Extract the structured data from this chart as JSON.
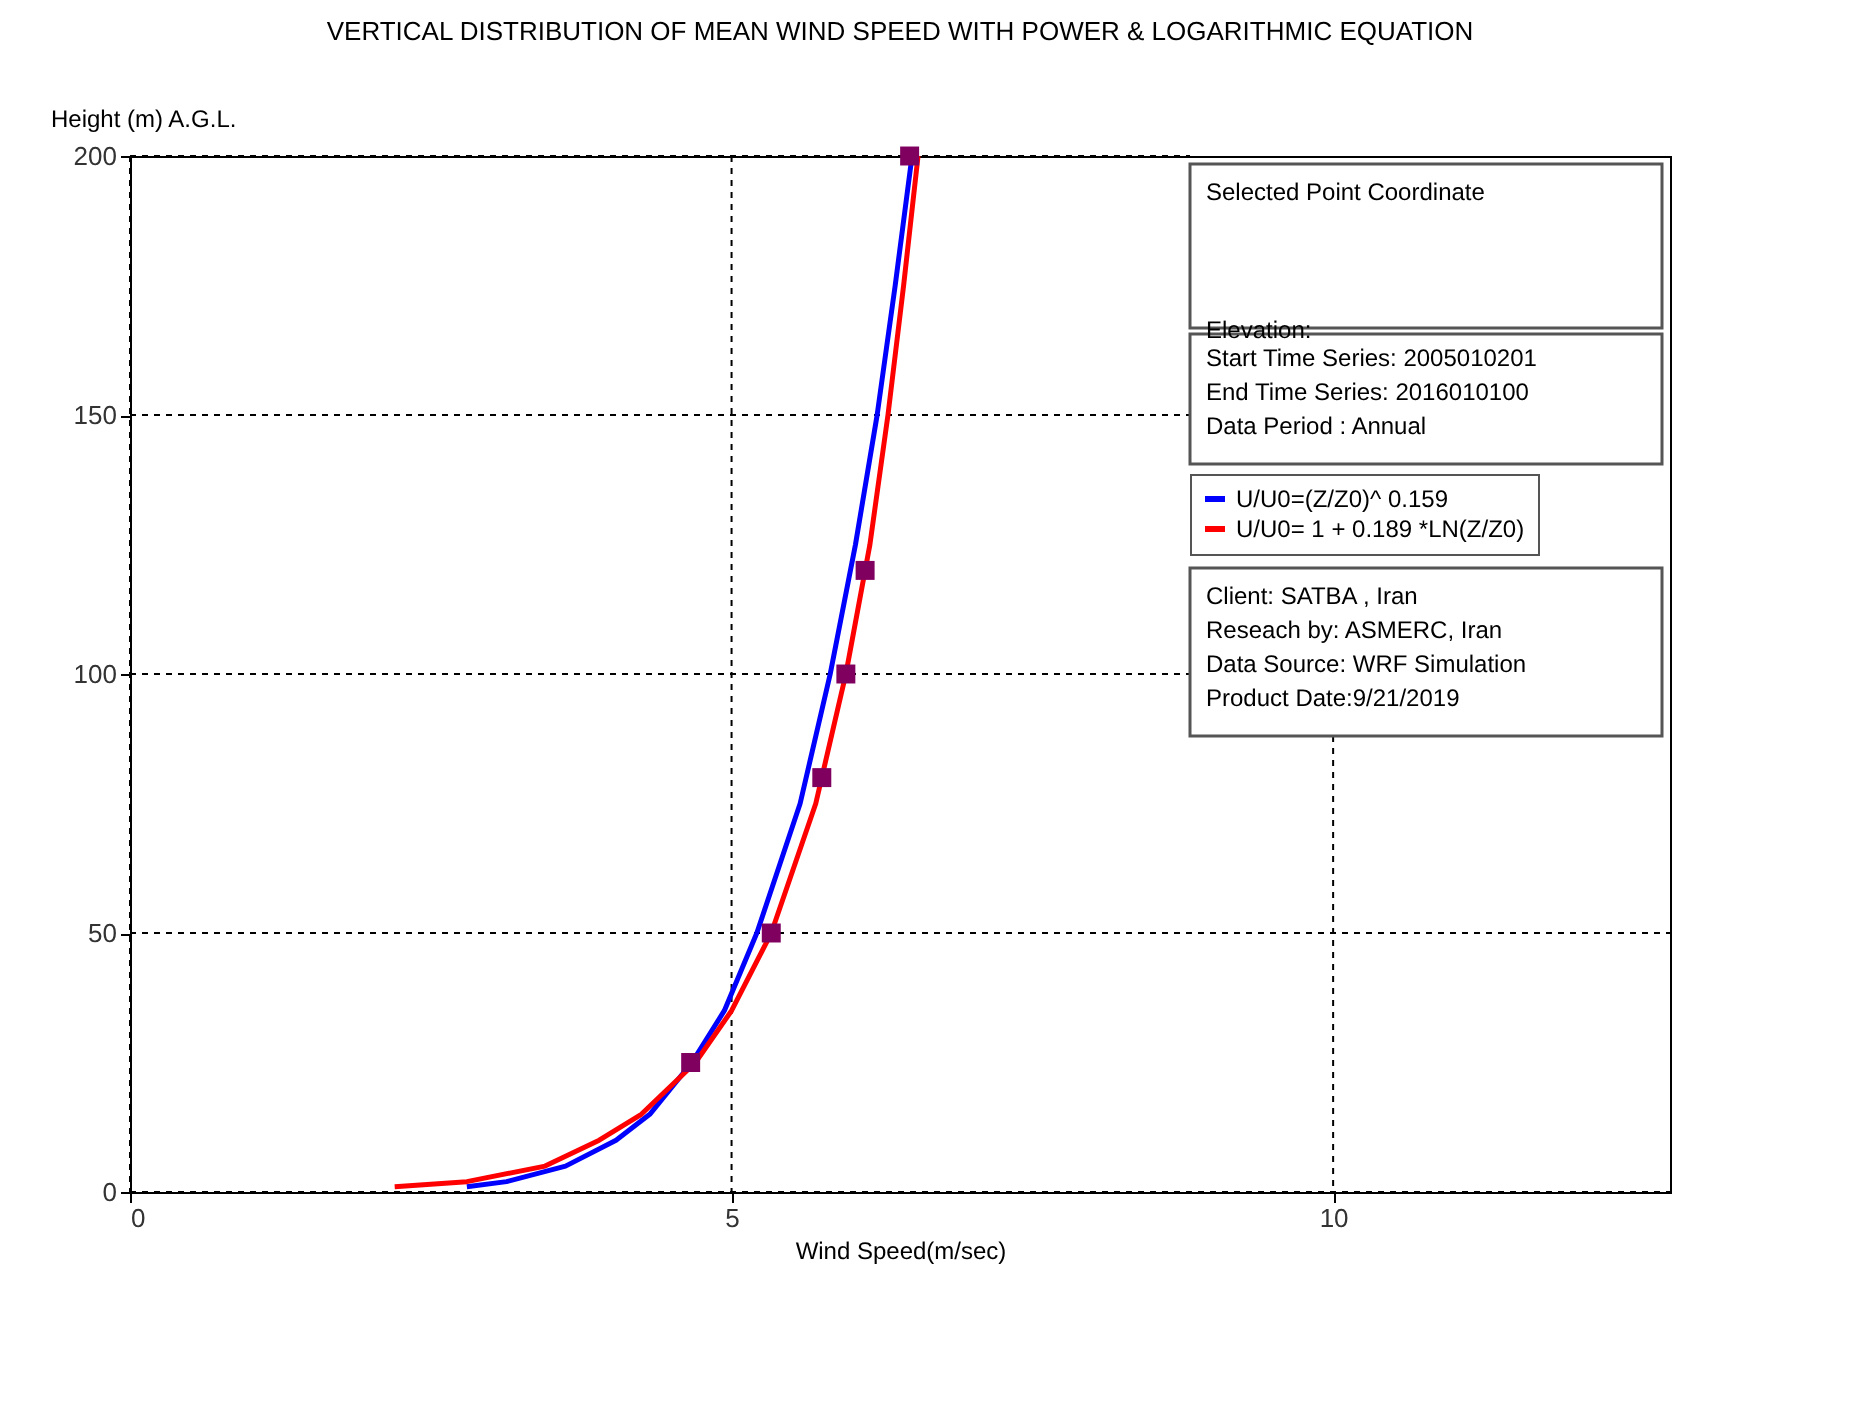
{
  "chart_data": {
    "type": "line",
    "title": "VERTICAL DISTRIBUTION OF MEAN WIND SPEED WITH POWER & LOGARITHMIC EQUATION",
    "xlabel": "Wind Speed(m/sec)",
    "ylabel": "Height (m)  A.G.L.",
    "series": [
      {
        "name": "U/U0=(Z/Z0)^ 0.159",
        "color": "#0000ff",
        "x": [
          2.8,
          3.13,
          3.62,
          4.04,
          4.32,
          4.67,
          4.94,
          5.21,
          5.57,
          5.82,
          6.03,
          6.21,
          6.36,
          6.5
        ],
        "values": [
          1,
          2,
          5,
          10,
          15,
          25,
          35,
          50,
          75,
          100,
          125,
          150,
          175,
          200
        ]
      },
      {
        "name": "U/U0= 1 + 0.189 *LN(Z/Z0)",
        "color": "#ff0000",
        "x": [
          2.2,
          2.8,
          3.45,
          3.9,
          4.25,
          4.7,
          5.0,
          5.33,
          5.7,
          5.95,
          6.15,
          6.3,
          6.43,
          6.55
        ],
        "values": [
          1,
          2,
          5,
          10,
          15,
          25,
          35,
          50,
          75,
          100,
          125,
          150,
          175,
          200
        ]
      },
      {
        "type": "scatter",
        "marker": "square",
        "color": "#800060",
        "x": [
          4.66,
          5.33,
          5.75,
          5.95,
          6.11,
          6.48
        ],
        "values": [
          25,
          50,
          80,
          100,
          120,
          200
        ]
      }
    ],
    "xlim": [
      0,
      12.8
    ],
    "xticks": [
      {
        "value": 0,
        "label": "0"
      },
      {
        "value": 5,
        "label": "5"
      },
      {
        "value": 10,
        "label": "10"
      }
    ],
    "ylim": [
      0,
      200
    ],
    "yticks": [
      0,
      50,
      100,
      150,
      200
    ],
    "grid": true,
    "legend": "top right",
    "line_style": "solid",
    "annotations": [
      "Selected Point Coordinate",
      "Elevation:",
      "Start Time Series: 2005010201",
      "End Time Series: 2016010100",
      "Data Period : Annual",
      "Client: SATBA , Iran",
      "Reseach by: ASMERC, Iran",
      "Data Source: WRF Simulation",
      "Product Date:9/21/2019"
    ]
  }
}
